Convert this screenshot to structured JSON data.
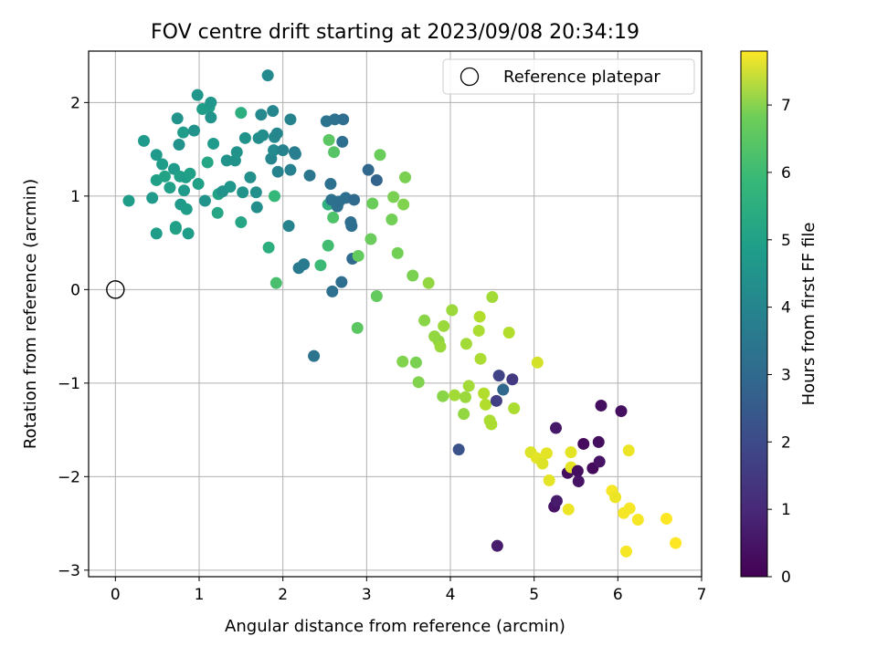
{
  "chart_data": {
    "type": "scatter",
    "title": "FOV centre drift starting at 2023/09/08 20:34:19",
    "xlabel": "Angular distance from reference (arcmin)",
    "ylabel": "Rotation from reference (arcmin)",
    "xlim": [
      -0.32,
      7.0
    ],
    "ylim": [
      -3.07,
      2.55
    ],
    "xticks": [
      0,
      1,
      2,
      3,
      4,
      5,
      6,
      7
    ],
    "yticks": [
      -3,
      -2,
      -1,
      0,
      1,
      2
    ],
    "grid": true,
    "legend": {
      "placement": "top-right",
      "entries": [
        "Reference platepar"
      ]
    },
    "reference_point": {
      "x": 0,
      "y": 0,
      "label": "Reference platepar"
    },
    "colorbar": {
      "label": "Hours from first FF file",
      "min": 0,
      "max": 7.8,
      "ticks": [
        0,
        1,
        2,
        3,
        4,
        5,
        6,
        7
      ],
      "colormap": "viridis"
    },
    "points": [
      {
        "x": 0.16,
        "y": 0.95,
        "h": 4.3
      },
      {
        "x": 0.34,
        "y": 1.59,
        "h": 4.2
      },
      {
        "x": 0.44,
        "y": 0.98,
        "h": 4.2
      },
      {
        "x": 0.49,
        "y": 1.17,
        "h": 4.4
      },
      {
        "x": 0.49,
        "y": 1.44,
        "h": 4.2
      },
      {
        "x": 0.49,
        "y": 0.6,
        "h": 4.3
      },
      {
        "x": 0.56,
        "y": 1.34,
        "h": 4.3
      },
      {
        "x": 0.59,
        "y": 1.21,
        "h": 4.5
      },
      {
        "x": 0.65,
        "y": 1.09,
        "h": 4.4
      },
      {
        "x": 0.7,
        "y": 1.29,
        "h": 4.2
      },
      {
        "x": 0.72,
        "y": 0.65,
        "h": 4.5
      },
      {
        "x": 0.72,
        "y": 0.67,
        "h": 4.4
      },
      {
        "x": 0.74,
        "y": 1.83,
        "h": 4.0
      },
      {
        "x": 0.76,
        "y": 1.55,
        "h": 4.0
      },
      {
        "x": 0.77,
        "y": 1.21,
        "h": 4.4
      },
      {
        "x": 0.78,
        "y": 0.91,
        "h": 4.2
      },
      {
        "x": 0.81,
        "y": 1.68,
        "h": 4.3
      },
      {
        "x": 0.82,
        "y": 1.06,
        "h": 4.2
      },
      {
        "x": 0.84,
        "y": 1.2,
        "h": 4.3
      },
      {
        "x": 0.85,
        "y": 0.86,
        "h": 4.3
      },
      {
        "x": 0.87,
        "y": 0.6,
        "h": 4.3
      },
      {
        "x": 0.89,
        "y": 1.24,
        "h": 4.4
      },
      {
        "x": 0.94,
        "y": 1.7,
        "h": 4.0
      },
      {
        "x": 0.98,
        "y": 2.08,
        "h": 4.1
      },
      {
        "x": 0.99,
        "y": 1.13,
        "h": 4.4
      },
      {
        "x": 1.04,
        "y": 1.93,
        "h": 4.3
      },
      {
        "x": 1.07,
        "y": 0.95,
        "h": 4.0
      },
      {
        "x": 1.1,
        "y": 1.36,
        "h": 4.6
      },
      {
        "x": 1.12,
        "y": 1.95,
        "h": 4.3
      },
      {
        "x": 1.14,
        "y": 2.0,
        "h": 4.1
      },
      {
        "x": 1.14,
        "y": 1.84,
        "h": 4.0
      },
      {
        "x": 1.17,
        "y": 1.56,
        "h": 4.2
      },
      {
        "x": 1.22,
        "y": 0.82,
        "h": 4.6
      },
      {
        "x": 1.23,
        "y": 1.02,
        "h": 4.5
      },
      {
        "x": 1.28,
        "y": 1.05,
        "h": 4.0
      },
      {
        "x": 1.33,
        "y": 1.38,
        "h": 4.0
      },
      {
        "x": 1.37,
        "y": 1.1,
        "h": 4.1
      },
      {
        "x": 1.43,
        "y": 1.38,
        "h": 4.0
      },
      {
        "x": 1.45,
        "y": 1.47,
        "h": 4.0
      },
      {
        "x": 1.5,
        "y": 0.72,
        "h": 4.6
      },
      {
        "x": 1.5,
        "y": 1.89,
        "h": 4.9
      },
      {
        "x": 1.52,
        "y": 1.04,
        "h": 4.0
      },
      {
        "x": 1.55,
        "y": 1.62,
        "h": 4.0
      },
      {
        "x": 1.61,
        "y": 1.2,
        "h": 3.9
      },
      {
        "x": 1.68,
        "y": 1.04,
        "h": 3.9
      },
      {
        "x": 1.69,
        "y": 0.88,
        "h": 3.8
      },
      {
        "x": 1.71,
        "y": 1.62,
        "h": 3.8
      },
      {
        "x": 1.74,
        "y": 1.87,
        "h": 3.7
      },
      {
        "x": 1.76,
        "y": 1.65,
        "h": 3.8
      },
      {
        "x": 1.82,
        "y": 2.29,
        "h": 3.7
      },
      {
        "x": 1.83,
        "y": 0.45,
        "h": 4.9
      },
      {
        "x": 1.86,
        "y": 1.4,
        "h": 3.6
      },
      {
        "x": 1.88,
        "y": 1.91,
        "h": 3.6
      },
      {
        "x": 1.89,
        "y": 1.49,
        "h": 3.7
      },
      {
        "x": 1.9,
        "y": 1.0,
        "h": 5.2
      },
      {
        "x": 1.9,
        "y": 1.63,
        "h": 3.7
      },
      {
        "x": 1.92,
        "y": 0.07,
        "h": 5.5
      },
      {
        "x": 1.93,
        "y": 1.67,
        "h": 3.6
      },
      {
        "x": 1.94,
        "y": 1.26,
        "h": 3.5
      },
      {
        "x": 2.0,
        "y": 1.49,
        "h": 3.5
      },
      {
        "x": 2.07,
        "y": 0.68,
        "h": 3.5
      },
      {
        "x": 2.09,
        "y": 1.82,
        "h": 3.5
      },
      {
        "x": 2.09,
        "y": 1.28,
        "h": 3.4
      },
      {
        "x": 2.14,
        "y": 1.47,
        "h": 3.3
      },
      {
        "x": 2.15,
        "y": 1.45,
        "h": 3.3
      },
      {
        "x": 2.19,
        "y": 0.23,
        "h": 3.2
      },
      {
        "x": 2.25,
        "y": 0.27,
        "h": 3.2
      },
      {
        "x": 2.32,
        "y": 1.22,
        "h": 3.1
      },
      {
        "x": 2.37,
        "y": -0.71,
        "h": 3.0
      },
      {
        "x": 2.45,
        "y": 0.26,
        "h": 5.3
      },
      {
        "x": 2.52,
        "y": 1.8,
        "h": 3.0
      },
      {
        "x": 2.54,
        "y": 0.47,
        "h": 5.4
      },
      {
        "x": 2.54,
        "y": 0.91,
        "h": 5.0
      },
      {
        "x": 2.55,
        "y": 1.6,
        "h": 5.8
      },
      {
        "x": 2.57,
        "y": 1.13,
        "h": 2.9
      },
      {
        "x": 2.58,
        "y": 0.96,
        "h": 2.9
      },
      {
        "x": 2.59,
        "y": -0.02,
        "h": 2.9
      },
      {
        "x": 2.6,
        "y": 0.77,
        "h": 5.6
      },
      {
        "x": 2.61,
        "y": 1.47,
        "h": 5.7
      },
      {
        "x": 2.62,
        "y": 1.82,
        "h": 2.9
      },
      {
        "x": 2.65,
        "y": 0.89,
        "h": 2.9
      },
      {
        "x": 2.67,
        "y": 0.94,
        "h": 2.8
      },
      {
        "x": 2.7,
        "y": 0.08,
        "h": 2.8
      },
      {
        "x": 2.71,
        "y": 1.58,
        "h": 2.8
      },
      {
        "x": 2.72,
        "y": 1.82,
        "h": 2.8
      },
      {
        "x": 2.75,
        "y": 0.98,
        "h": 2.8
      },
      {
        "x": 2.81,
        "y": 0.72,
        "h": 2.8
      },
      {
        "x": 2.82,
        "y": 0.68,
        "h": 2.8
      },
      {
        "x": 2.83,
        "y": 0.33,
        "h": 2.7
      },
      {
        "x": 2.85,
        "y": 0.96,
        "h": 2.7
      },
      {
        "x": 2.89,
        "y": -0.41,
        "h": 5.8
      },
      {
        "x": 2.9,
        "y": 0.36,
        "h": 5.9
      },
      {
        "x": 3.02,
        "y": 1.28,
        "h": 2.6
      },
      {
        "x": 3.05,
        "y": 0.54,
        "h": 6.0
      },
      {
        "x": 3.07,
        "y": 0.92,
        "h": 6.0
      },
      {
        "x": 3.12,
        "y": 1.17,
        "h": 2.5
      },
      {
        "x": 3.12,
        "y": -0.07,
        "h": 5.9
      },
      {
        "x": 3.16,
        "y": 1.44,
        "h": 6.0
      },
      {
        "x": 3.3,
        "y": 0.75,
        "h": 6.1
      },
      {
        "x": 3.32,
        "y": 0.99,
        "h": 6.2
      },
      {
        "x": 3.37,
        "y": 0.39,
        "h": 6.1
      },
      {
        "x": 3.43,
        "y": -0.77,
        "h": 6.3
      },
      {
        "x": 3.44,
        "y": 0.91,
        "h": 6.3
      },
      {
        "x": 3.46,
        "y": 1.2,
        "h": 6.2
      },
      {
        "x": 3.55,
        "y": 0.15,
        "h": 6.2
      },
      {
        "x": 3.59,
        "y": -0.78,
        "h": 6.2
      },
      {
        "x": 3.62,
        "y": -0.99,
        "h": 6.3
      },
      {
        "x": 3.69,
        "y": -0.33,
        "h": 6.4
      },
      {
        "x": 3.74,
        "y": 0.07,
        "h": 6.5
      },
      {
        "x": 3.81,
        "y": -0.5,
        "h": 6.5
      },
      {
        "x": 3.86,
        "y": -0.55,
        "h": 6.5
      },
      {
        "x": 3.88,
        "y": -0.61,
        "h": 6.6
      },
      {
        "x": 3.91,
        "y": -1.14,
        "h": 6.4
      },
      {
        "x": 3.92,
        "y": -0.39,
        "h": 6.6
      },
      {
        "x": 4.02,
        "y": -0.22,
        "h": 6.6
      },
      {
        "x": 4.05,
        "y": -1.13,
        "h": 6.7
      },
      {
        "x": 4.1,
        "y": -1.71,
        "h": 2.0
      },
      {
        "x": 4.16,
        "y": -1.33,
        "h": 6.5
      },
      {
        "x": 4.18,
        "y": -1.15,
        "h": 6.6
      },
      {
        "x": 4.19,
        "y": -0.58,
        "h": 6.7
      },
      {
        "x": 4.22,
        "y": -1.03,
        "h": 6.7
      },
      {
        "x": 4.34,
        "y": -0.44,
        "h": 6.8
      },
      {
        "x": 4.35,
        "y": -0.29,
        "h": 6.9
      },
      {
        "x": 4.36,
        "y": -0.74,
        "h": 6.8
      },
      {
        "x": 4.4,
        "y": -1.11,
        "h": 6.9
      },
      {
        "x": 4.42,
        "y": -1.23,
        "h": 6.9
      },
      {
        "x": 4.47,
        "y": -1.4,
        "h": 6.8
      },
      {
        "x": 4.49,
        "y": -1.44,
        "h": 6.8
      },
      {
        "x": 4.5,
        "y": -0.08,
        "h": 6.7
      },
      {
        "x": 4.55,
        "y": -1.19,
        "h": 1.5
      },
      {
        "x": 4.56,
        "y": -2.74,
        "h": 0.6
      },
      {
        "x": 4.58,
        "y": -0.92,
        "h": 1.6
      },
      {
        "x": 4.63,
        "y": -1.07,
        "h": 2.6
      },
      {
        "x": 4.7,
        "y": -0.46,
        "h": 6.9
      },
      {
        "x": 4.74,
        "y": -0.96,
        "h": 1.3
      },
      {
        "x": 4.76,
        "y": -1.27,
        "h": 6.8
      },
      {
        "x": 4.96,
        "y": -1.74,
        "h": 7.4
      },
      {
        "x": 5.03,
        "y": -1.8,
        "h": 7.5
      },
      {
        "x": 5.04,
        "y": -0.78,
        "h": 7.3
      },
      {
        "x": 5.1,
        "y": -1.86,
        "h": 7.4
      },
      {
        "x": 5.15,
        "y": -1.75,
        "h": 7.5
      },
      {
        "x": 5.18,
        "y": -2.04,
        "h": 7.5
      },
      {
        "x": 5.24,
        "y": -2.32,
        "h": 0.4
      },
      {
        "x": 5.26,
        "y": -1.48,
        "h": 0.5
      },
      {
        "x": 5.27,
        "y": -2.26,
        "h": 0.6
      },
      {
        "x": 5.4,
        "y": -1.96,
        "h": 0.3
      },
      {
        "x": 5.41,
        "y": -2.35,
        "h": 7.6
      },
      {
        "x": 5.44,
        "y": -1.74,
        "h": 7.5
      },
      {
        "x": 5.44,
        "y": -1.9,
        "h": 7.5
      },
      {
        "x": 5.52,
        "y": -1.94,
        "h": 0.3
      },
      {
        "x": 5.53,
        "y": -2.05,
        "h": 0.4
      },
      {
        "x": 5.59,
        "y": -1.65,
        "h": 0.2
      },
      {
        "x": 5.7,
        "y": -1.91,
        "h": 0.2
      },
      {
        "x": 5.77,
        "y": -1.63,
        "h": 0.3
      },
      {
        "x": 5.78,
        "y": -1.84,
        "h": 0.4
      },
      {
        "x": 5.8,
        "y": -1.24,
        "h": 0.3
      },
      {
        "x": 5.93,
        "y": -2.15,
        "h": 7.7
      },
      {
        "x": 5.97,
        "y": -2.22,
        "h": 7.6
      },
      {
        "x": 6.04,
        "y": -1.3,
        "h": 0.3
      },
      {
        "x": 6.07,
        "y": -2.39,
        "h": 7.7
      },
      {
        "x": 6.1,
        "y": -2.8,
        "h": 7.7
      },
      {
        "x": 6.13,
        "y": -1.72,
        "h": 7.6
      },
      {
        "x": 6.14,
        "y": -2.34,
        "h": 7.7
      },
      {
        "x": 6.24,
        "y": -2.46,
        "h": 7.7
      },
      {
        "x": 6.58,
        "y": -2.45,
        "h": 7.8
      },
      {
        "x": 6.69,
        "y": -2.71,
        "h": 7.8
      }
    ]
  }
}
